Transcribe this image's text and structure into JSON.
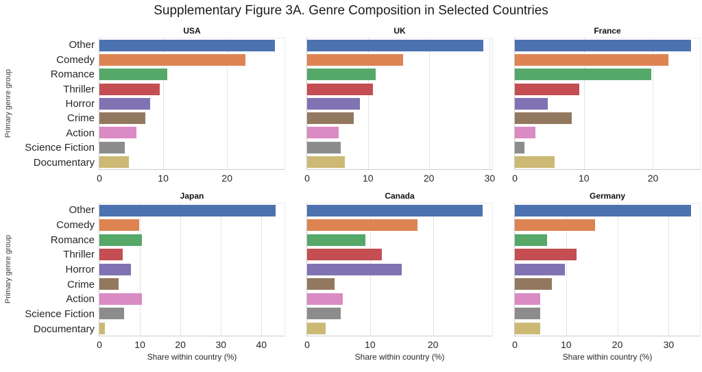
{
  "title": "Supplementary Figure 3A. Genre Composition in Selected Countries",
  "axis": {
    "ylabel": "Primary genre group",
    "xlabel": "Share within country (%)"
  },
  "categories": [
    "Other",
    "Comedy",
    "Romance",
    "Thriller",
    "Horror",
    "Crime",
    "Action",
    "Science Fiction",
    "Documentary"
  ],
  "colors": {
    "bar_palette": [
      "#4C72B0",
      "#DD8452",
      "#55A868",
      "#C44E52",
      "#8172B3",
      "#937860",
      "#DA8BC3",
      "#8C8C8C",
      "#CCB974"
    ],
    "gridline": "#e3e3e3",
    "spine": "#cccccc",
    "text": "#262626"
  },
  "chart_data": [
    {
      "type": "bar",
      "orientation": "horizontal",
      "title": "USA",
      "categories": [
        "Other",
        "Comedy",
        "Romance",
        "Thriller",
        "Horror",
        "Crime",
        "Action",
        "Science Fiction",
        "Documentary"
      ],
      "values": [
        27.5,
        22.9,
        10.6,
        9.4,
        8.0,
        7.2,
        5.8,
        4.0,
        4.6
      ],
      "xticks": [
        0,
        10,
        20
      ],
      "xlim": [
        0,
        29.0
      ],
      "grid": true
    },
    {
      "type": "bar",
      "orientation": "horizontal",
      "title": "UK",
      "categories": [
        "Other",
        "Comedy",
        "Romance",
        "Thriller",
        "Horror",
        "Crime",
        "Action",
        "Science Fiction",
        "Documentary"
      ],
      "values": [
        28.9,
        15.8,
        11.3,
        10.8,
        8.7,
        7.6,
        5.2,
        5.5,
        6.2
      ],
      "xticks": [
        0,
        10,
        20,
        30
      ],
      "xlim": [
        0,
        30.4
      ],
      "grid": true
    },
    {
      "type": "bar",
      "orientation": "horizontal",
      "title": "France",
      "categories": [
        "Other",
        "Comedy",
        "Romance",
        "Thriller",
        "Horror",
        "Crime",
        "Action",
        "Science Fiction",
        "Documentary"
      ],
      "values": [
        25.5,
        22.2,
        19.8,
        9.3,
        4.8,
        8.2,
        3.0,
        1.4,
        5.8
      ],
      "xticks": [
        0,
        10,
        20
      ],
      "xlim": [
        0,
        26.8
      ],
      "grid": true
    },
    {
      "type": "bar",
      "orientation": "horizontal",
      "title": "Japan",
      "categories": [
        "Other",
        "Comedy",
        "Romance",
        "Thriller",
        "Horror",
        "Crime",
        "Action",
        "Science Fiction",
        "Documentary"
      ],
      "values": [
        43.5,
        9.8,
        10.5,
        5.7,
        7.8,
        4.7,
        10.5,
        6.1,
        1.4
      ],
      "xticks": [
        0,
        10,
        20,
        30,
        40
      ],
      "xlim": [
        0,
        45.7
      ],
      "grid": true
    },
    {
      "type": "bar",
      "orientation": "horizontal",
      "title": "Canada",
      "categories": [
        "Other",
        "Comedy",
        "Romance",
        "Thriller",
        "Horror",
        "Crime",
        "Action",
        "Science Fiction",
        "Documentary"
      ],
      "values": [
        27.9,
        17.5,
        9.3,
        11.9,
        15.0,
        4.4,
        5.7,
        5.3,
        2.9
      ],
      "xticks": [
        0,
        10,
        20
      ],
      "xlim": [
        0,
        29.4
      ],
      "grid": true
    },
    {
      "type": "bar",
      "orientation": "horizontal",
      "title": "Germany",
      "categories": [
        "Other",
        "Comedy",
        "Romance",
        "Thriller",
        "Horror",
        "Crime",
        "Action",
        "Science Fiction",
        "Documentary"
      ],
      "values": [
        34.4,
        15.7,
        6.3,
        12.0,
        9.7,
        7.2,
        4.9,
        4.9,
        4.9
      ],
      "xticks": [
        0,
        10,
        20,
        30
      ],
      "xlim": [
        0,
        36.1
      ],
      "grid": true
    }
  ]
}
